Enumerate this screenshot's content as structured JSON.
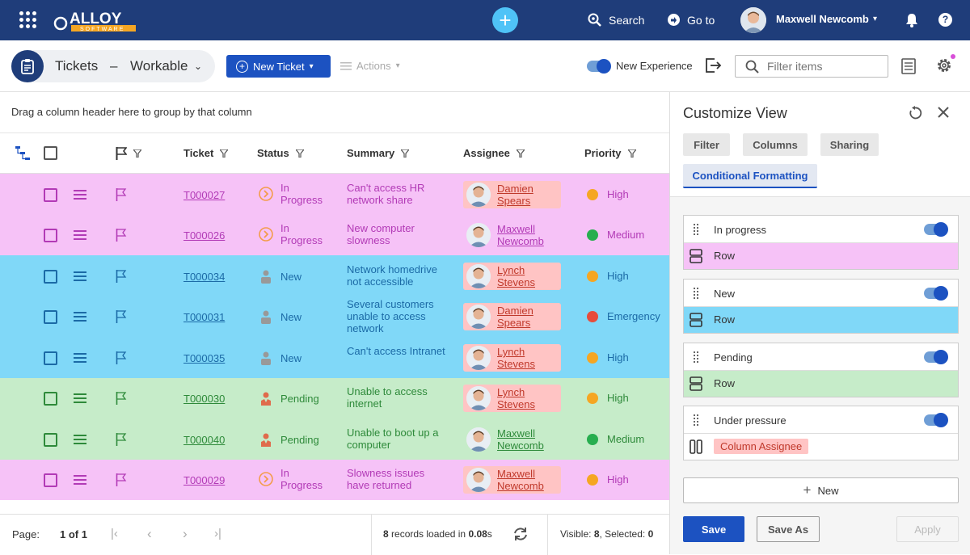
{
  "topbar": {
    "logo_text": "ALLOY",
    "logo_sub": "SOFTWARE",
    "search_label": "Search",
    "goto_label": "Go to",
    "user_name": "Maxwell Newcomb",
    "bg_color": "#1f3d7a"
  },
  "toolbar": {
    "view_title": "Tickets",
    "view_dash": "–",
    "view_name": "Workable",
    "new_ticket": "New Ticket",
    "actions": "Actions",
    "new_experience": "New Experience",
    "filter_placeholder": "Filter items"
  },
  "grid": {
    "group_hint": "Drag a column header here to group by that column",
    "columns": [
      "Ticket",
      "Status",
      "Summary",
      "Assignee",
      "Priority"
    ],
    "rows": [
      {
        "id": "T000027",
        "status": "In Progress",
        "summary": "Can't access HR network share",
        "assignee": "Damien Spears",
        "priority": "High",
        "group": "inprogress",
        "assignee_highlight": true
      },
      {
        "id": "T000026",
        "status": "In Progress",
        "summary": "New computer slowness",
        "assignee": "Maxwell Newcomb",
        "priority": "Medium",
        "group": "inprogress",
        "assignee_highlight": false
      },
      {
        "id": "T000034",
        "status": "New",
        "summary": "Network homedrive not accessible",
        "assignee": "Lynch Stevens",
        "priority": "High",
        "group": "new",
        "assignee_highlight": true
      },
      {
        "id": "T000031",
        "status": "New",
        "summary": "Several customers unable to access network",
        "assignee": "Damien Spears",
        "priority": "Emergency",
        "group": "new",
        "assignee_highlight": true
      },
      {
        "id": "T000035",
        "status": "New",
        "summary": "Can't access Intranet",
        "assignee": "Lynch Stevens",
        "priority": "High",
        "group": "new",
        "assignee_highlight": true
      },
      {
        "id": "T000030",
        "status": "Pending",
        "summary": "Unable to access internet",
        "assignee": "Lynch Stevens",
        "priority": "High",
        "group": "pending",
        "assignee_highlight": true
      },
      {
        "id": "T000040",
        "status": "Pending",
        "summary": "Unable to boot up a computer",
        "assignee": "Maxwell Newcomb",
        "priority": "Medium",
        "group": "pending",
        "assignee_highlight": false
      },
      {
        "id": "T000029",
        "status": "In Progress",
        "summary": "Slowness issues have returned",
        "assignee": "Maxwell Newcomb",
        "priority": "High",
        "group": "inprogress",
        "assignee_highlight": true
      }
    ]
  },
  "footer": {
    "page_label": "Page:",
    "page_value": "1 of 1",
    "records_count": "8",
    "records_mid": "records loaded in",
    "records_time": "0.08",
    "records_unit": "s",
    "visible_label": "Visible:",
    "visible_value": "8",
    "selected_label": "Selected:",
    "selected_value": "0"
  },
  "panel": {
    "title": "Customize View",
    "tabs": [
      "Filter",
      "Columns",
      "Sharing",
      "Conditional Formatting"
    ],
    "rules": [
      {
        "name": "In progress",
        "target": "Row",
        "color": "#f6c2f7",
        "target_type": "row"
      },
      {
        "name": "New",
        "target": "Row",
        "color": "#80d8f8",
        "target_type": "row"
      },
      {
        "name": "Pending",
        "target": "Row",
        "color": "#c6ecc9",
        "target_type": "row"
      },
      {
        "name": "Under pressure",
        "target": "Column Assignee",
        "color": "#ffc4c4",
        "target_type": "column"
      }
    ],
    "new_label": "New",
    "save": "Save",
    "save_as": "Save As",
    "apply": "Apply"
  },
  "colors": {
    "inprogress_bg": "#f6c2f7",
    "inprogress_fg": "#b23ab6",
    "new_bg": "#80d8f8",
    "new_fg": "#1b6aa6",
    "pending_bg": "#c6ecc9",
    "pending_fg": "#2e8a3a",
    "high": "#f5a623",
    "medium": "#27ae4f",
    "emergency": "#e74c3c",
    "accent": "#1c52c1"
  }
}
